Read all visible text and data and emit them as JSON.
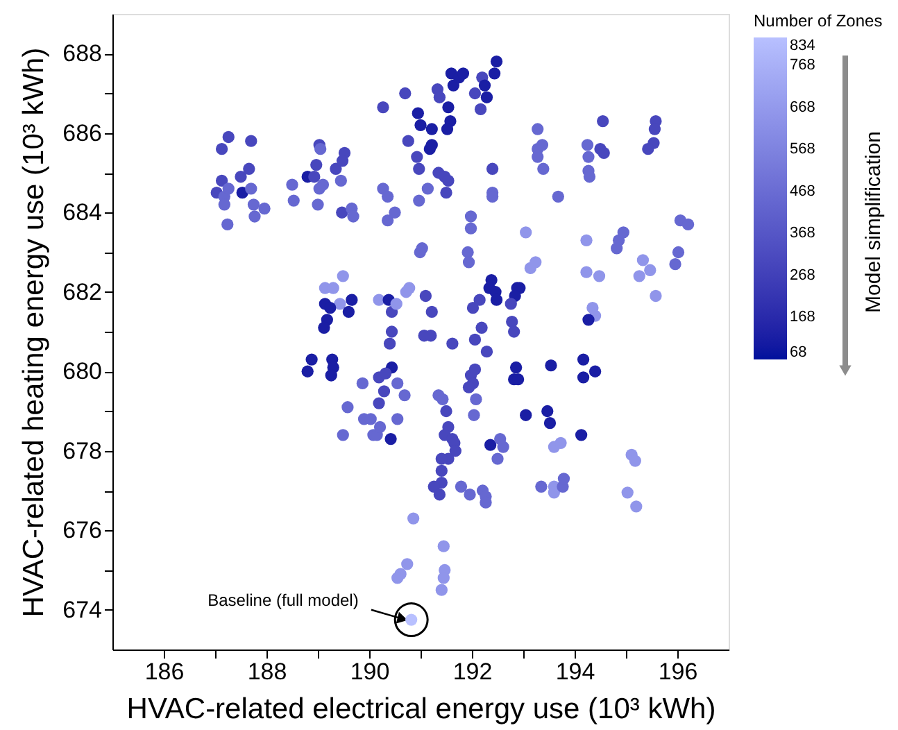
{
  "chart_data": {
    "type": "scatter",
    "xlabel": "HVAC-related electrical energy use (10³ kWh)",
    "ylabel": "HVAC-related heating energy use (10³ kWh)",
    "clabel": "Number of Zones",
    "marker": "circle",
    "grid": false,
    "xlim": [
      185,
      197
    ],
    "ylim": [
      673,
      689
    ],
    "xticks": [
      186,
      {
        "value": 187,
        "label": null
      },
      188,
      {
        "value": 189,
        "label": null
      },
      190,
      {
        "value": 191,
        "label": null
      },
      192,
      {
        "value": 193,
        "label": null
      },
      194,
      {
        "value": 195,
        "label": null
      },
      196
    ],
    "yticks": [
      674,
      {
        "value": 675,
        "label": null
      },
      676,
      {
        "value": 677,
        "label": null
      },
      678,
      {
        "value": 679,
        "label": null
      },
      680,
      {
        "value": 681,
        "label": null
      },
      682,
      {
        "value": 683,
        "label": null
      },
      684,
      {
        "value": 685,
        "label": null
      },
      686,
      {
        "value": 687,
        "label": null
      },
      688
    ],
    "clim": [
      68,
      834
    ],
    "cticks": [
      68,
      168,
      268,
      368,
      468,
      568,
      668,
      768,
      834
    ],
    "annotations": [
      "Model simplification",
      {
        "text": "Baseline (full model)",
        "x": 190.82,
        "y": 673.75
      }
    ],
    "x": [
      187.03,
      187.13,
      187.13,
      187.26,
      187.18,
      187.26,
      187.18,
      187.24,
      187.53,
      187.5,
      187.66,
      187.7,
      187.7,
      187.75,
      187.77,
      187.96,
      188.5,
      188.53,
      188.8,
      188.93,
      188.97,
      189.03,
      189.05,
      189.1,
      189.03,
      189.0,
      189.35,
      189.52,
      189.48,
      189.45,
      189.47,
      189.66,
      189.69,
      189.14,
      189.3,
      189.49,
      189.43,
      189.14,
      189.24,
      189.18,
      189.12,
      189.66,
      189.6,
      188.88,
      188.8,
      189.28,
      189.3,
      189.26,
      190.27,
      190.7,
      190.95,
      191.0,
      190.76,
      191.22,
      191.18,
      191.22,
      190.93,
      190.97,
      191.33,
      191.37,
      191.54,
      191.58,
      191.52,
      191.6,
      191.64,
      191.75,
      191.83,
      192.06,
      192.2,
      192.25,
      192.29,
      192.17,
      192.48,
      192.44,
      191.35,
      191.47,
      191.54,
      191.5,
      191.14,
      190.97,
      190.27,
      190.36,
      190.36,
      190.5,
      190.99,
      191.03,
      191.98,
      191.98,
      191.92,
      191.94,
      192.4,
      192.4,
      192.4,
      190.19,
      190.38,
      190.44,
      190.53,
      190.72,
      190.78,
      191.1,
      191.22,
      190.44,
      190.4,
      191.07,
      191.2,
      191.62,
      192.06,
      192.19,
      192.02,
      192.15,
      192.38,
      192.34,
      192.46,
      192.48,
      192.88,
      192.93,
      192.84,
      192.76,
      192.78,
      192.82,
      192.29,
      193.05,
      193.14,
      193.24,
      193.28,
      193.28,
      193.37,
      193.28,
      193.39,
      193.68,
      194.23,
      194.25,
      194.27,
      194.27,
      194.29,
      194.55,
      194.5,
      194.57,
      194.23,
      194.48,
      194.35,
      194.4,
      194.27,
      194.17,
      194.82,
      194.86,
      194.95,
      195.33,
      195.26,
      195.47,
      195.58,
      195.58,
      195.56,
      195.54,
      195.43,
      196.06,
      196.21,
      196.02,
      195.96,
      193.54,
      189.87,
      189.58,
      189.49,
      189.9,
      190.03,
      190.08,
      190.15,
      190.19,
      190.19,
      190.21,
      190.44,
      190.32,
      190.29,
      190.55,
      190.69,
      190.55,
      190.42,
      191.98,
      192.06,
      192.02,
      191.94,
      192.08,
      192.04,
      191.35,
      191.43,
      191.5,
      191.54,
      191.47,
      191.62,
      191.66,
      191.68,
      191.54,
      191.41,
      191.41,
      191.41,
      191.26,
      191.37,
      191.79,
      191.96,
      192.21,
      192.27,
      192.27,
      192.36,
      192.5,
      192.55,
      192.61,
      192.86,
      192.82,
      192.9,
      193.05,
      193.47,
      193.52,
      193.6,
      193.73,
      193.35,
      193.6,
      193.6,
      193.77,
      193.79,
      194.17,
      194.4,
      194.13,
      195.11,
      195.18,
      195.03,
      195.2,
      190.86,
      190.74,
      190.61,
      190.55,
      191.45,
      191.47,
      191.45,
      191.41,
      190.82
    ],
    "values": [
      684.5,
      684.8,
      685.6,
      685.9,
      684.4,
      684.6,
      684.2,
      683.7,
      684.5,
      684.9,
      685.1,
      685.8,
      684.6,
      684.2,
      683.9,
      684.1,
      684.7,
      684.3,
      684.9,
      684.9,
      685.2,
      685.7,
      685.6,
      684.7,
      684.6,
      684.2,
      685.1,
      685.5,
      685.3,
      684.8,
      684.0,
      684.1,
      683.9,
      682.1,
      682.1,
      682.4,
      681.7,
      681.7,
      681.6,
      681.3,
      681.1,
      681.8,
      681.5,
      680.3,
      680.0,
      680.3,
      680.1,
      679.9,
      686.65,
      687.0,
      686.5,
      686.2,
      685.8,
      686.1,
      685.6,
      685.7,
      685.4,
      685.1,
      687.1,
      686.9,
      686.65,
      686.3,
      686.1,
      687.5,
      687.2,
      687.4,
      687.5,
      687.0,
      687.4,
      687.2,
      686.9,
      686.6,
      687.8,
      687.5,
      685.0,
      684.9,
      684.8,
      684.5,
      684.6,
      684.3,
      684.6,
      684.4,
      683.8,
      684.0,
      683.0,
      683.1,
      683.9,
      683.6,
      683.0,
      682.75,
      685.1,
      684.5,
      684.4,
      681.8,
      681.8,
      681.5,
      681.7,
      682.0,
      682.1,
      681.9,
      681.5,
      681.0,
      680.7,
      680.9,
      680.9,
      680.7,
      680.8,
      681.1,
      681.6,
      681.8,
      682.3,
      682.1,
      682.0,
      681.8,
      682.1,
      682.1,
      681.9,
      681.7,
      681.25,
      681.0,
      680.5,
      683.5,
      682.6,
      682.75,
      686.1,
      685.6,
      685.7,
      685.4,
      685.1,
      684.4,
      683.3,
      685.7,
      685.4,
      685.05,
      684.9,
      686.3,
      685.6,
      685.5,
      682.5,
      682.4,
      681.6,
      681.4,
      681.3,
      680.3,
      683.1,
      683.3,
      683.5,
      682.8,
      682.4,
      682.55,
      681.9,
      686.3,
      686.1,
      685.75,
      685.6,
      683.8,
      683.7,
      683.0,
      682.7,
      680.15,
      679.7,
      679.1,
      678.4,
      678.8,
      678.8,
      678.4,
      678.4,
      679.2,
      679.85,
      678.6,
      680.1,
      679.95,
      679.5,
      679.7,
      679.4,
      678.8,
      678.3,
      679.9,
      680.05,
      679.7,
      679.6,
      679.3,
      678.9,
      679.4,
      679.3,
      679.0,
      678.6,
      678.4,
      678.3,
      678.2,
      678.0,
      677.8,
      677.8,
      677.5,
      677.2,
      677.1,
      676.9,
      677.1,
      676.9,
      677.0,
      676.85,
      676.7,
      678.15,
      677.8,
      678.3,
      678.1,
      680.1,
      679.8,
      679.8,
      678.9,
      679.0,
      678.7,
      678.1,
      678.2,
      677.1,
      677.1,
      676.95,
      677.1,
      677.3,
      679.85,
      680.0,
      678.4,
      677.9,
      677.75,
      676.95,
      676.6,
      676.3,
      675.15,
      674.9,
      674.8,
      675.6,
      675.0,
      674.8,
      674.5,
      673.75
    ],
    "cvalues": [
      300,
      300,
      300,
      300,
      450,
      450,
      450,
      450,
      120,
      300,
      300,
      300,
      450,
      450,
      450,
      450,
      450,
      450,
      120,
      300,
      300,
      300,
      450,
      450,
      450,
      450,
      300,
      300,
      300,
      450,
      300,
      450,
      450,
      650,
      650,
      650,
      650,
      120,
      120,
      120,
      120,
      120,
      120,
      120,
      120,
      120,
      120,
      120,
      300,
      300,
      120,
      120,
      300,
      120,
      120,
      120,
      300,
      300,
      300,
      300,
      120,
      120,
      120,
      120,
      120,
      120,
      120,
      300,
      300,
      120,
      120,
      300,
      120,
      120,
      300,
      300,
      300,
      300,
      450,
      450,
      450,
      450,
      450,
      450,
      450,
      450,
      450,
      450,
      450,
      450,
      300,
      450,
      450,
      650,
      120,
      300,
      650,
      650,
      650,
      300,
      300,
      300,
      300,
      300,
      300,
      300,
      300,
      300,
      300,
      300,
      120,
      120,
      120,
      120,
      120,
      120,
      120,
      300,
      300,
      300,
      300,
      650,
      650,
      650,
      450,
      450,
      450,
      450,
      450,
      450,
      650,
      450,
      450,
      450,
      450,
      300,
      300,
      300,
      650,
      650,
      650,
      650,
      120,
      120,
      450,
      450,
      450,
      650,
      650,
      650,
      650,
      300,
      300,
      300,
      300,
      450,
      450,
      450,
      450,
      120,
      450,
      450,
      450,
      450,
      450,
      450,
      450,
      300,
      300,
      450,
      120,
      300,
      300,
      450,
      450,
      450,
      120,
      300,
      300,
      300,
      300,
      450,
      450,
      450,
      450,
      300,
      300,
      300,
      300,
      300,
      300,
      300,
      300,
      300,
      300,
      300,
      300,
      450,
      450,
      450,
      450,
      450,
      120,
      450,
      450,
      450,
      120,
      120,
      120,
      120,
      120,
      120,
      650,
      650,
      450,
      650,
      650,
      450,
      450,
      120,
      120,
      120,
      650,
      650,
      650,
      650,
      650,
      650,
      650,
      650,
      650,
      650,
      650,
      650,
      834
    ]
  }
}
